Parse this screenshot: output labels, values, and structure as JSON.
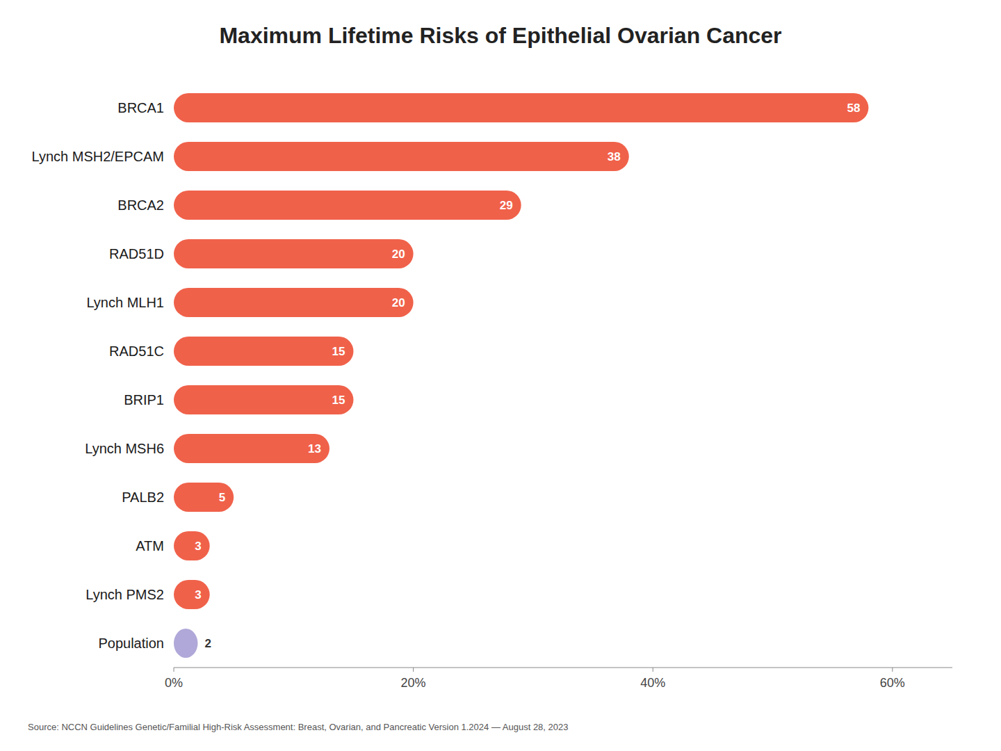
{
  "chart_data": {
    "type": "bar",
    "orientation": "horizontal",
    "title": "Maximum Lifetime Risks of Epithelial Ovarian Cancer",
    "categories": [
      "BRCA1",
      "Lynch MSH2/EPCAM",
      "BRCA2",
      "RAD51D",
      "Lynch MLH1",
      "RAD51C",
      "BRIP1",
      "Lynch MSH6",
      "PALB2",
      "ATM",
      "Lynch PMS2",
      "Population"
    ],
    "values": [
      58,
      38,
      29,
      20,
      20,
      15,
      15,
      13,
      5,
      3,
      3,
      2
    ],
    "colors": [
      "#F0614A",
      "#F0614A",
      "#F0614A",
      "#F0614A",
      "#F0614A",
      "#F0614A",
      "#F0614A",
      "#F0614A",
      "#F0614A",
      "#F0614A",
      "#F0614A",
      "#B0A8D8"
    ],
    "xlim": [
      0,
      65
    ],
    "xticks": [
      {
        "value": 0,
        "label": "0%"
      },
      {
        "value": 20,
        "label": "20%"
      },
      {
        "value": 40,
        "label": "40%"
      },
      {
        "value": 60,
        "label": "60%"
      }
    ],
    "grid": false,
    "data_labels": true,
    "annotations": [
      "Source: NCCN Guidelines Genetic/Familial High-Risk Assessment: Breast, Ovarian, and Pancreatic Version 1.2024 — August 28, 2023"
    ]
  }
}
